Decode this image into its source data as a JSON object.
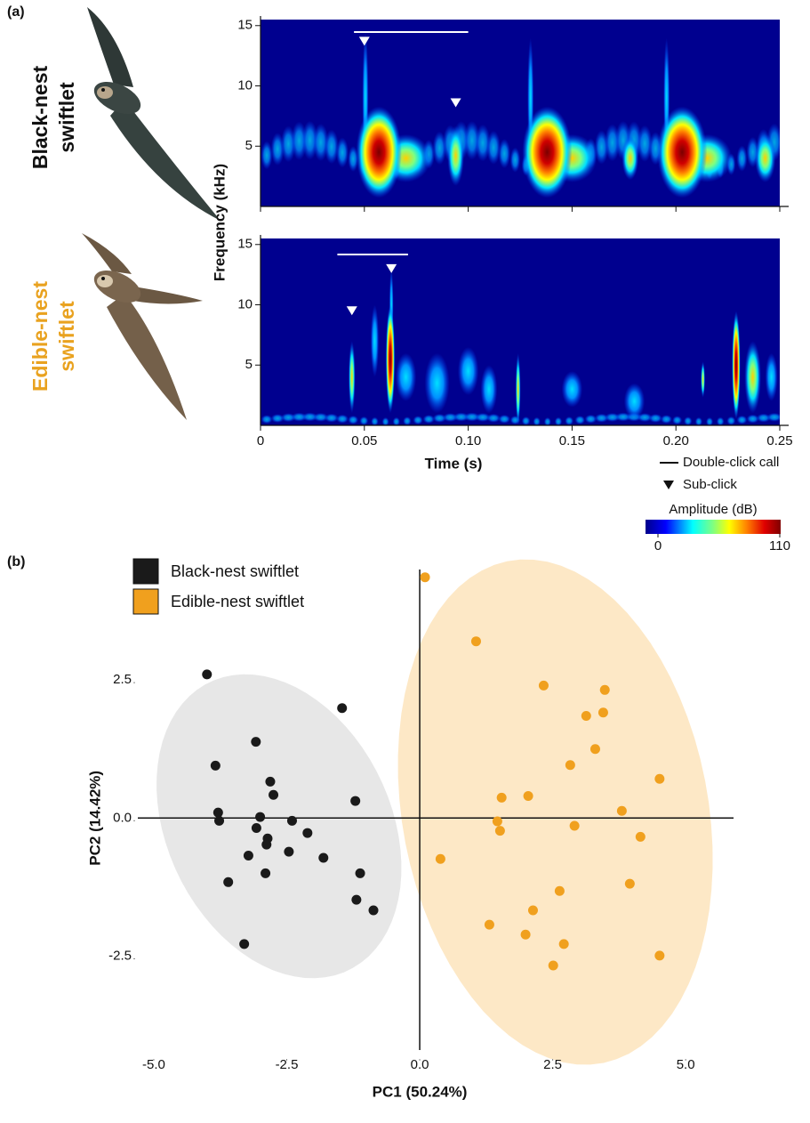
{
  "chart_data": [
    {
      "type": "spectrogram",
      "panel_label": "(a)",
      "x_label": "Time (s)",
      "y_label": "Frequency (kHz)",
      "xlim": [
        0,
        0.25
      ],
      "xticks": [
        0,
        0.05,
        {
          "value": 0.1,
          "label": "0.10"
        },
        0.15,
        {
          "value": 0.2,
          "label": "0.20"
        },
        0.25
      ],
      "ylim": [
        0,
        15.5
      ],
      "yticks": [
        5,
        10,
        15
      ],
      "panels": [
        {
          "name": "Black-nest swiftlet",
          "name_color": "#111111",
          "call_bars": [
            [
              0.045,
              0.1
            ]
          ],
          "sub_clicks": [
            [
              0.05,
              13.7
            ],
            [
              0.094,
              8.6
            ]
          ]
        },
        {
          "name": "Edible-nest swiftlet",
          "name_color": "#e9a21f",
          "call_bars": [
            [
              0.037,
              0.071
            ]
          ],
          "sub_clicks": [
            [
              0.044,
              9.5
            ],
            [
              0.063,
              13.0
            ]
          ]
        }
      ],
      "legend": {
        "call": "Double-click call",
        "sub_click": "Sub-click"
      },
      "colorbar": {
        "title": "Amplitude (dB)",
        "lim": [
          0,
          110
        ],
        "ticks": [
          0,
          110
        ]
      }
    },
    {
      "type": "scatter",
      "panel_label": "(b)",
      "x_label": "PC1 (50.24%)",
      "y_label": "PC2 (14.42%)",
      "xlim": [
        -5.3,
        5.9
      ],
      "ylim": [
        -4.2,
        4.5
      ],
      "xticks": [
        {
          "value": -5,
          "label": "-5.0"
        },
        -2.5,
        {
          "value": 0,
          "label": "0.0"
        },
        2.5,
        {
          "value": 5,
          "label": "5.0"
        }
      ],
      "yticks": [
        2.5,
        {
          "value": 0,
          "label": "0.0"
        },
        -2.5
      ],
      "series": [
        {
          "name": "Black-nest swiftlet",
          "color": "#1a1a1a",
          "ellipse_color": "#e4e4e4",
          "x": [
            -4.0,
            -1.46,
            -3.08,
            -3.84,
            -2.81,
            -2.75,
            -1.21,
            -3.79,
            -3.77,
            -3.0,
            -2.4,
            -3.07,
            -2.11,
            -2.86,
            -2.88,
            -2.46,
            -3.22,
            -1.81,
            -1.12,
            -2.9,
            -3.6,
            -1.19,
            -0.87,
            -3.3
          ],
          "y": [
            2.6,
            1.99,
            1.38,
            0.95,
            0.66,
            0.42,
            0.31,
            0.1,
            -0.05,
            0.02,
            -0.05,
            -0.18,
            -0.27,
            -0.37,
            -0.48,
            -0.61,
            -0.68,
            -0.72,
            -1.0,
            -1.0,
            -1.16,
            -1.48,
            -1.67,
            -2.28
          ]
        },
        {
          "name": "Edible-nest swiftlet",
          "color": "#f0a01e",
          "ellipse_color": "#fde6c0",
          "x": [
            0.1,
            1.06,
            2.33,
            3.48,
            3.45,
            3.13,
            3.3,
            2.83,
            4.51,
            2.04,
            1.54,
            3.8,
            1.46,
            1.51,
            2.91,
            4.15,
            0.39,
            3.95,
            2.63,
            2.13,
            1.31,
            1.99,
            2.71,
            2.51,
            4.51
          ],
          "y": [
            4.36,
            3.2,
            2.4,
            2.32,
            1.91,
            1.85,
            1.25,
            0.96,
            0.71,
            0.4,
            0.37,
            0.13,
            -0.06,
            -0.23,
            -0.14,
            -0.34,
            -0.74,
            -1.19,
            -1.32,
            -1.67,
            -1.93,
            -2.11,
            -2.28,
            -2.67,
            -2.49
          ]
        }
      ]
    }
  ]
}
